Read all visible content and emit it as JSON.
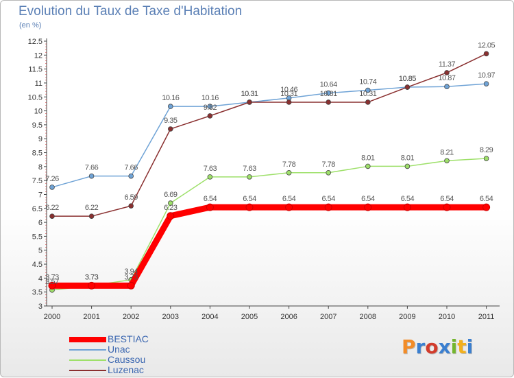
{
  "chart_data": {
    "type": "line",
    "title": "Evolution du Taux de Taxe d'Habitation",
    "subtitle": "(en %)",
    "x": [
      "2000",
      "2001",
      "2002",
      "2003",
      "2004",
      "2005",
      "2006",
      "2007",
      "2008",
      "2009",
      "2010",
      "2011"
    ],
    "ylim": [
      3,
      12.5
    ],
    "yticks": [
      "3",
      "3.5",
      "4",
      "4.5",
      "5",
      "5.5",
      "6",
      "6.5",
      "7",
      "7.5",
      "8",
      "8.5",
      "9",
      "9.5",
      "10",
      "10.5",
      "11",
      "11.5",
      "12",
      "12.5"
    ],
    "grid": false,
    "legend_position": "bottom-left",
    "series": [
      {
        "name": "BESTIAC",
        "color": "#ff0000",
        "values": [
          3.73,
          3.73,
          3.73,
          6.23,
          6.54,
          6.54,
          6.54,
          6.54,
          6.54,
          6.54,
          6.54,
          6.54
        ],
        "labels": [
          "3.73",
          "3.73",
          "3.73",
          "6.23",
          "6.54",
          "6.54",
          "6.54",
          "6.54",
          "6.54",
          "6.54",
          "6.54",
          "6.54"
        ]
      },
      {
        "name": "Unac",
        "color": "#6fa3d6",
        "values": [
          7.26,
          7.66,
          7.66,
          10.16,
          10.16,
          10.31,
          10.46,
          10.64,
          10.74,
          10.85,
          10.87,
          10.97
        ],
        "labels": [
          "7.26",
          "7.66",
          "7.66",
          "10.16",
          "10.16",
          "10.31",
          "10.46",
          "10.64",
          "10.74",
          "10.85",
          "10.87",
          "10.97"
        ]
      },
      {
        "name": "Caussou",
        "color": "#9ee06a",
        "values": [
          3.57,
          3.73,
          3.94,
          6.69,
          7.63,
          7.63,
          7.78,
          7.78,
          8.01,
          8.01,
          8.21,
          8.29
        ],
        "labels": [
          "3.57",
          "3.73",
          "3.94",
          "6.69",
          "7.63",
          "7.63",
          "7.78",
          "7.78",
          "8.01",
          "8.01",
          "8.21",
          "8.29"
        ]
      },
      {
        "name": "Luzenac",
        "color": "#8a3030",
        "values": [
          6.22,
          6.22,
          6.59,
          9.35,
          9.82,
          10.31,
          10.31,
          10.31,
          10.31,
          10.85,
          11.37,
          12.05
        ],
        "labels": [
          "6.22",
          "6.22",
          "6.59",
          "9.35",
          "9.82",
          "10.31",
          "10.31",
          "10.31",
          "10.31",
          "10.85",
          "11.37",
          "12.05"
        ]
      }
    ]
  },
  "logo": {
    "text": "Proxiti",
    "colors": [
      "#f28c28",
      "#3a7fd0",
      "#d23c2c",
      "#3a7fd0",
      "#74b62e",
      "#f2b01e",
      "#3a7fd0"
    ]
  }
}
